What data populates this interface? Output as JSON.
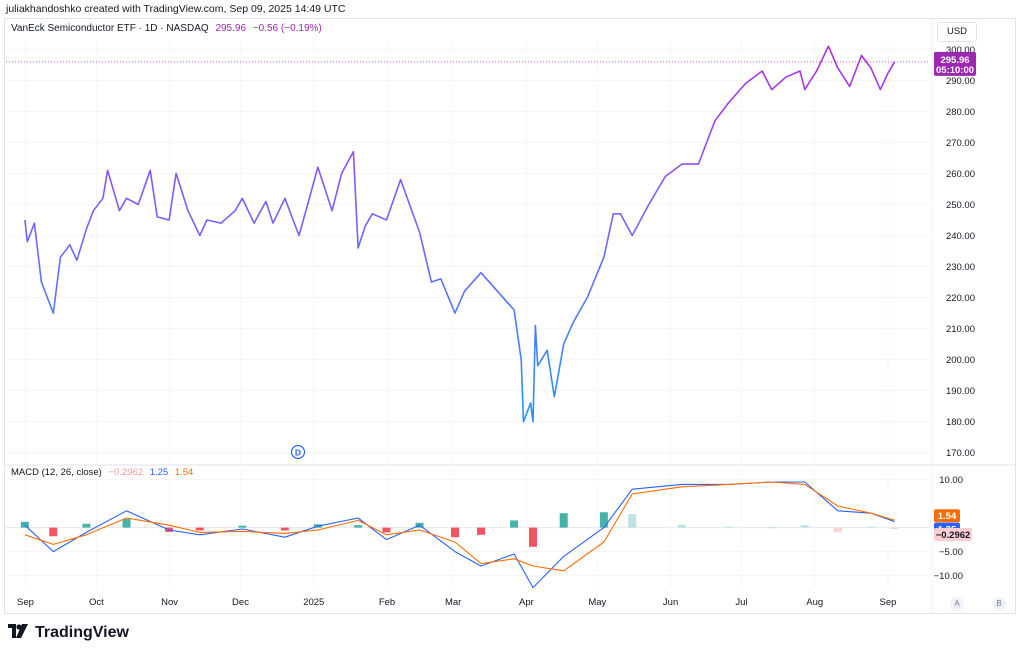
{
  "header": {
    "created_line": "juliakhandoshko created with TradingView.com, Sep 09, 2025 14:49 UTC"
  },
  "symbol": {
    "title": "VanEck Semiconductor ETF · 1D · NASDAQ",
    "price": "295.96",
    "change": "−0.56 (−0.19%)"
  },
  "currency_button": "USD",
  "price_tag": {
    "price": "295.96",
    "countdown": "05:10:00",
    "color": "#9c27b0"
  },
  "event_marker": "D",
  "macd_legend": {
    "label": "MACD (12, 26, close)",
    "histogram": "−0.2962",
    "macd": "1.25",
    "signal": "1.54"
  },
  "macd_tags": {
    "signal": "1.54",
    "macd": "1.25",
    "histogram": "−0.2962"
  },
  "scale_buttons": [
    "A",
    "B"
  ],
  "brand": "TradingView",
  "chart_data": [
    {
      "type": "line",
      "title": "VanEck Semiconductor ETF · 1D · NASDAQ",
      "x_labels": [
        "Sep",
        "Oct",
        "Nov",
        "Dec",
        "2025",
        "Feb",
        "Mar",
        "Apr",
        "May",
        "Jun",
        "Jul",
        "Aug",
        "Sep"
      ],
      "y_ticks": [
        "300.00",
        "290.00",
        "280.00",
        "270.00",
        "260.00",
        "250.00",
        "240.00",
        "230.00",
        "220.00",
        "210.00",
        "200.00",
        "190.00",
        "180.00",
        "170.00"
      ],
      "ylim": [
        167,
        303
      ],
      "series": [
        {
          "x": [
            "2024-09-05",
            "2024-09-06",
            "2024-09-09",
            "2024-09-12",
            "2024-09-17",
            "2024-09-20",
            "2024-09-24",
            "2024-09-27",
            "2024-10-01",
            "2024-10-04",
            "2024-10-08",
            "2024-10-10",
            "2024-10-15",
            "2024-10-18",
            "2024-10-23",
            "2024-10-28",
            "2024-10-31",
            "2024-11-05",
            "2024-11-08",
            "2024-11-13",
            "2024-11-18",
            "2024-11-21",
            "2024-11-27",
            "2024-12-03",
            "2024-12-06",
            "2024-12-11",
            "2024-12-16",
            "2024-12-19",
            "2024-12-24",
            "2024-12-30",
            "2025-01-03",
            "2025-01-07",
            "2025-01-13",
            "2025-01-17",
            "2025-01-22",
            "2025-01-24",
            "2025-01-27",
            "2025-01-30",
            "2025-02-05",
            "2025-02-11",
            "2025-02-19",
            "2025-02-24",
            "2025-02-28",
            "2025-03-06",
            "2025-03-10",
            "2025-03-17",
            "2025-03-24",
            "2025-03-31",
            "2025-04-03",
            "2025-04-04",
            "2025-04-07",
            "2025-04-08",
            "2025-04-09",
            "2025-04-10",
            "2025-04-14",
            "2025-04-17",
            "2025-04-21",
            "2025-04-25",
            "2025-05-01",
            "2025-05-08",
            "2025-05-12",
            "2025-05-15",
            "2025-05-20",
            "2025-05-27",
            "2025-06-03",
            "2025-06-10",
            "2025-06-17",
            "2025-06-24",
            "2025-06-30",
            "2025-07-07",
            "2025-07-14",
            "2025-07-18",
            "2025-07-24",
            "2025-07-30",
            "2025-08-01",
            "2025-08-06",
            "2025-08-11",
            "2025-08-15",
            "2025-08-20",
            "2025-08-25",
            "2025-08-29",
            "2025-09-02",
            "2025-09-05",
            "2025-09-08"
          ],
          "values": [
            245,
            238,
            244,
            225,
            215,
            233,
            237,
            232,
            242,
            248,
            252,
            261,
            248,
            252,
            250,
            261,
            246,
            245,
            260,
            248,
            240,
            245,
            244,
            248,
            252,
            244,
            251,
            244,
            252,
            240,
            251,
            262,
            248,
            260,
            267,
            236,
            243,
            247,
            245,
            258,
            241,
            225,
            226,
            215,
            222,
            228,
            222,
            216,
            200,
            180,
            186,
            180,
            211,
            198,
            203,
            188,
            205,
            212,
            220,
            233,
            247,
            247,
            240,
            250,
            259,
            263,
            263,
            277,
            283,
            289,
            293,
            287,
            291,
            293,
            287,
            293,
            301,
            294,
            288,
            298,
            294,
            287,
            292,
            296
          ]
        }
      ]
    },
    {
      "type": "bar",
      "title": "MACD (12, 26, close)",
      "y_ticks": [
        "10.00",
        "−5.00",
        "−10.00"
      ],
      "ylim": [
        -13,
        12
      ],
      "x": [
        "2024-09-05",
        "2024-09-17",
        "2024-10-01",
        "2024-10-18",
        "2024-11-05",
        "2024-11-18",
        "2024-12-06",
        "2024-12-24",
        "2025-01-07",
        "2025-01-24",
        "2025-02-05",
        "2025-02-19",
        "2025-03-06",
        "2025-03-17",
        "2025-03-31",
        "2025-04-08",
        "2025-04-21",
        "2025-05-08",
        "2025-05-20",
        "2025-06-10",
        "2025-06-30",
        "2025-07-18",
        "2025-08-01",
        "2025-08-15",
        "2025-08-29",
        "2025-09-08"
      ],
      "series": [
        {
          "name": "MACD",
          "color": "#2962ff",
          "values": [
            0.5,
            -5.0,
            -1.0,
            3.5,
            -0.5,
            -1.5,
            -0.3,
            -2.0,
            0.3,
            2.0,
            -2.5,
            0.5,
            -5.0,
            -8.0,
            -5.5,
            -12.5,
            -6.0,
            0,
            8.0,
            9.0,
            9.0,
            9.5,
            9.5,
            3.5,
            3.0,
            1.25
          ]
        },
        {
          "name": "Signal",
          "color": "#ff6d00",
          "values": [
            -1.5,
            -3.5,
            -1.5,
            2.0,
            0.5,
            -1.0,
            -0.8,
            -1.2,
            -0.5,
            1.5,
            -1.5,
            -0.5,
            -3.0,
            -7.5,
            -6.5,
            -8.0,
            -9.0,
            -3.0,
            7.0,
            8.5,
            9.0,
            9.5,
            9.0,
            4.5,
            3.0,
            1.54
          ]
        },
        {
          "name": "Histogram",
          "values": [
            1.2,
            -1.8,
            0.8,
            1.8,
            -0.9,
            -0.6,
            0.4,
            -0.6,
            0.7,
            0.5,
            -1.0,
            1.0,
            -2.0,
            -1.5,
            1.5,
            -4.0,
            3.0,
            3.2,
            2.8,
            0.6,
            0.2,
            0.1,
            0.5,
            -1.0,
            0.2,
            -0.2962
          ]
        }
      ]
    }
  ]
}
